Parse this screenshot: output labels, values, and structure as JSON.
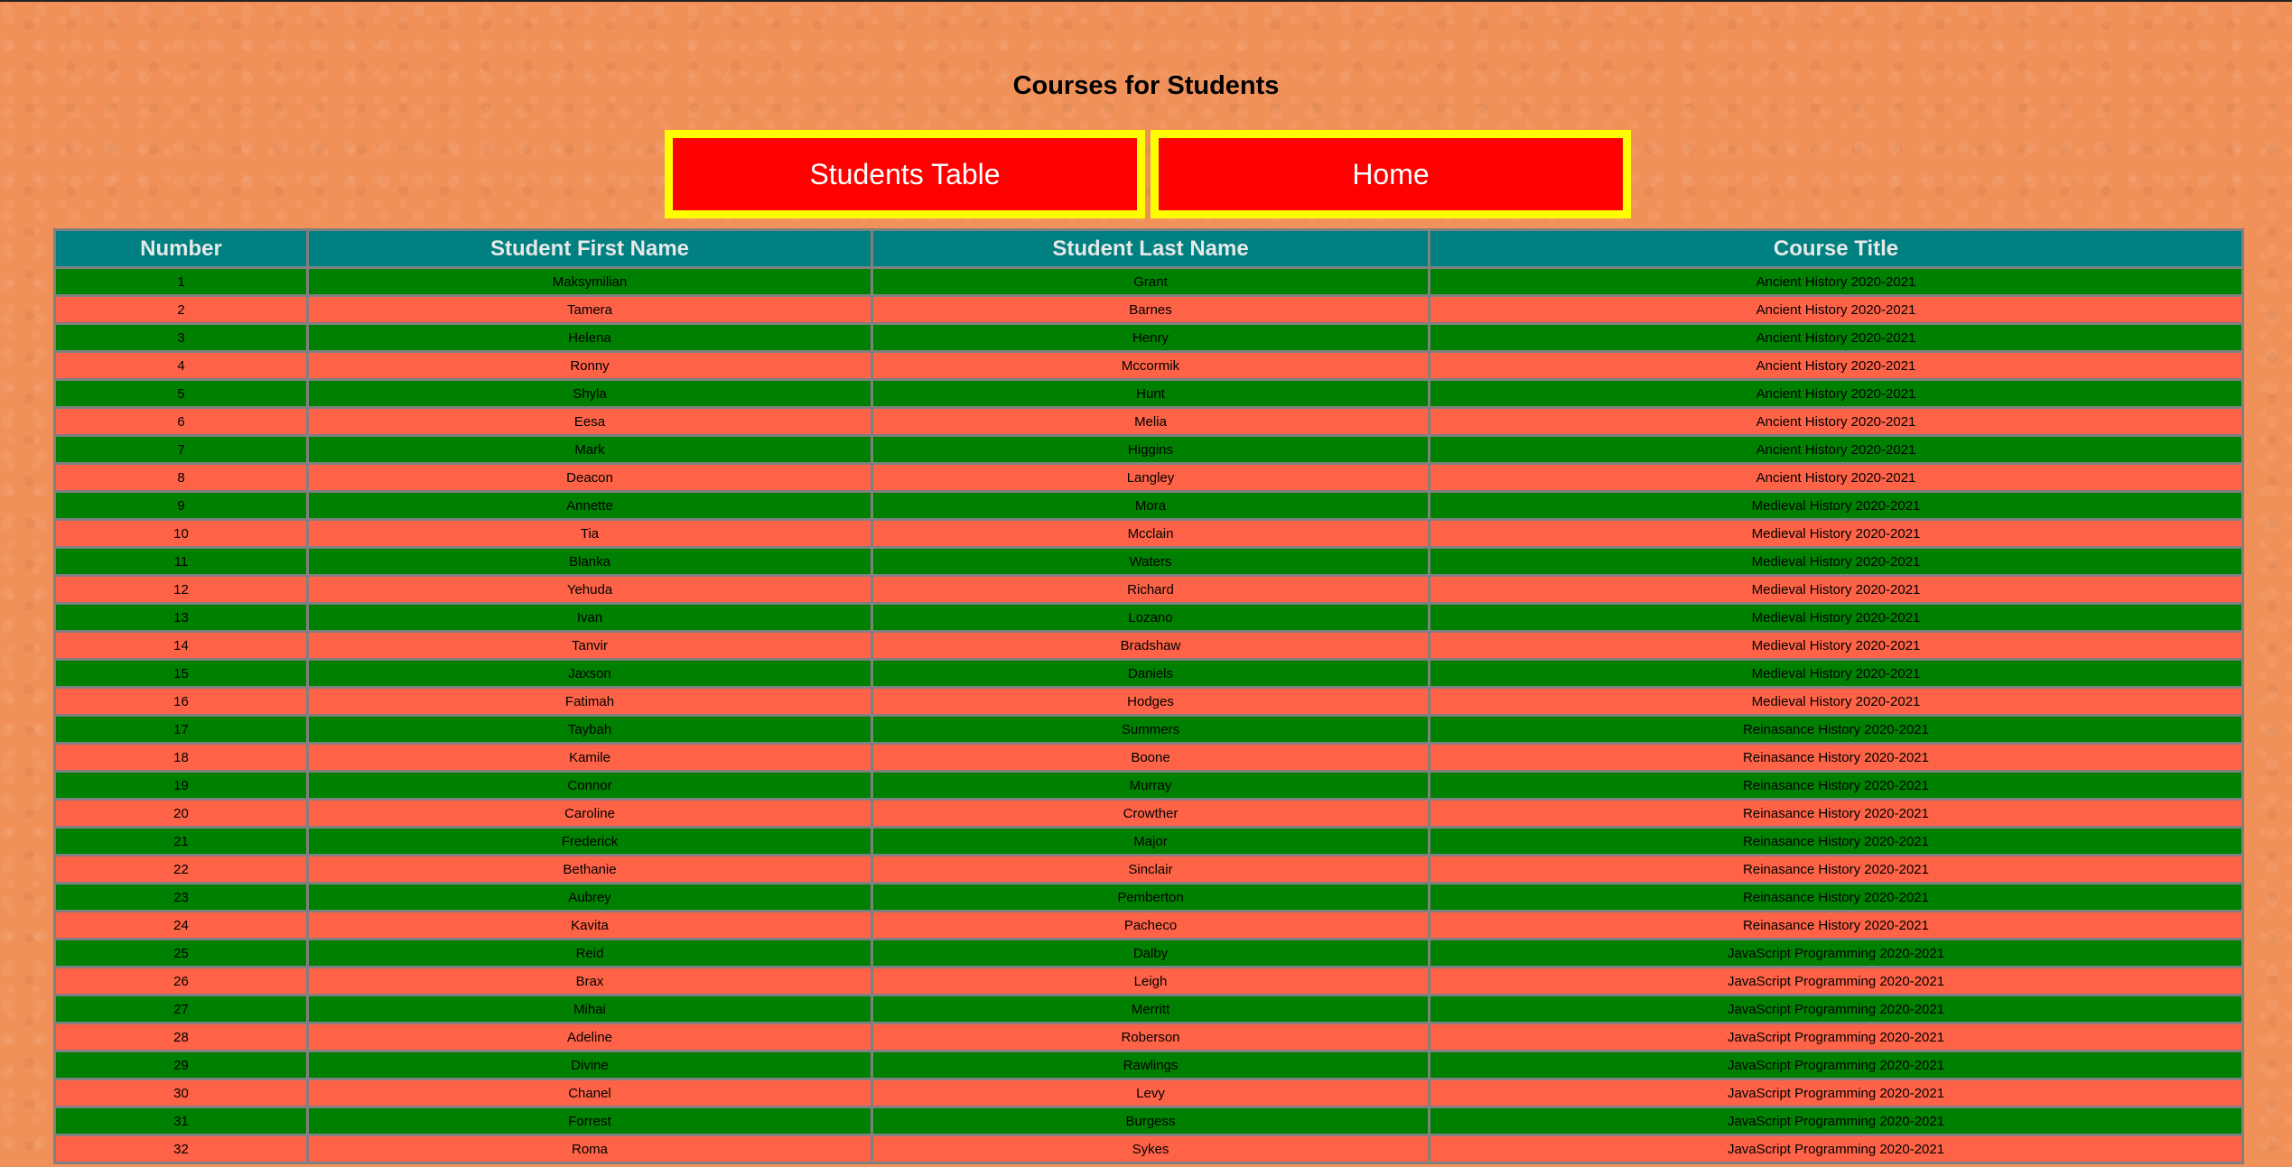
{
  "page": {
    "title": "Courses for Students"
  },
  "nav": {
    "students_table_label": "Students Table",
    "home_label": "Home"
  },
  "table": {
    "headers": [
      "Number",
      "Student First Name",
      "Student Last Name",
      "Course Title"
    ],
    "rows": [
      [
        "1",
        "Maksymilian",
        "Grant",
        "Ancient History 2020-2021"
      ],
      [
        "2",
        "Tamera",
        "Barnes",
        "Ancient History 2020-2021"
      ],
      [
        "3",
        "Helena",
        "Henry",
        "Ancient History 2020-2021"
      ],
      [
        "4",
        "Ronny",
        "Mccormik",
        "Ancient History 2020-2021"
      ],
      [
        "5",
        "Shyla",
        "Hunt",
        "Ancient History 2020-2021"
      ],
      [
        "6",
        "Eesa",
        "Melia",
        "Ancient History 2020-2021"
      ],
      [
        "7",
        "Mark",
        "Higgins",
        "Ancient History 2020-2021"
      ],
      [
        "8",
        "Deacon",
        "Langley",
        "Ancient History 2020-2021"
      ],
      [
        "9",
        "Annette",
        "Mora",
        "Medieval History 2020-2021"
      ],
      [
        "10",
        "Tia",
        "Mcclain",
        "Medieval History 2020-2021"
      ],
      [
        "11",
        "Blanka",
        "Waters",
        "Medieval History 2020-2021"
      ],
      [
        "12",
        "Yehuda",
        "Richard",
        "Medieval History 2020-2021"
      ],
      [
        "13",
        "Ivan",
        "Lozano",
        "Medieval History 2020-2021"
      ],
      [
        "14",
        "Tanvir",
        "Bradshaw",
        "Medieval History 2020-2021"
      ],
      [
        "15",
        "Jaxson",
        "Daniels",
        "Medieval History 2020-2021"
      ],
      [
        "16",
        "Fatimah",
        "Hodges",
        "Medieval History 2020-2021"
      ],
      [
        "17",
        "Taybah",
        "Summers",
        "Reinasance History 2020-2021"
      ],
      [
        "18",
        "Kamile",
        "Boone",
        "Reinasance History 2020-2021"
      ],
      [
        "19",
        "Connor",
        "Murray",
        "Reinasance History 2020-2021"
      ],
      [
        "20",
        "Caroline",
        "Crowther",
        "Reinasance History 2020-2021"
      ],
      [
        "21",
        "Frederick",
        "Major",
        "Reinasance History 2020-2021"
      ],
      [
        "22",
        "Bethanie",
        "Sinclair",
        "Reinasance History 2020-2021"
      ],
      [
        "23",
        "Aubrey",
        "Pemberton",
        "Reinasance History 2020-2021"
      ],
      [
        "24",
        "Kavita",
        "Pacheco",
        "Reinasance History 2020-2021"
      ],
      [
        "25",
        "Reid",
        "Dalby",
        "JavaScript Programming 2020-2021"
      ],
      [
        "26",
        "Brax",
        "Leigh",
        "JavaScript Programming 2020-2021"
      ],
      [
        "27",
        "Mihai",
        "Merritt",
        "JavaScript Programming 2020-2021"
      ],
      [
        "28",
        "Adeline",
        "Roberson",
        "JavaScript Programming 2020-2021"
      ],
      [
        "29",
        "Divine",
        "Rawlings",
        "JavaScript Programming 2020-2021"
      ],
      [
        "30",
        "Chanel",
        "Levy",
        "JavaScript Programming 2020-2021"
      ],
      [
        "31",
        "Forrest",
        "Burgess",
        "JavaScript Programming 2020-2021"
      ],
      [
        "32",
        "Roma",
        "Sykes",
        "JavaScript Programming 2020-2021"
      ]
    ]
  },
  "colors": {
    "background": "#f0915a",
    "header_bg": "#008080",
    "row_odd": "#008000",
    "row_even": "#ff6347",
    "button_bg": "#ff0000",
    "button_border": "#ffff00"
  }
}
